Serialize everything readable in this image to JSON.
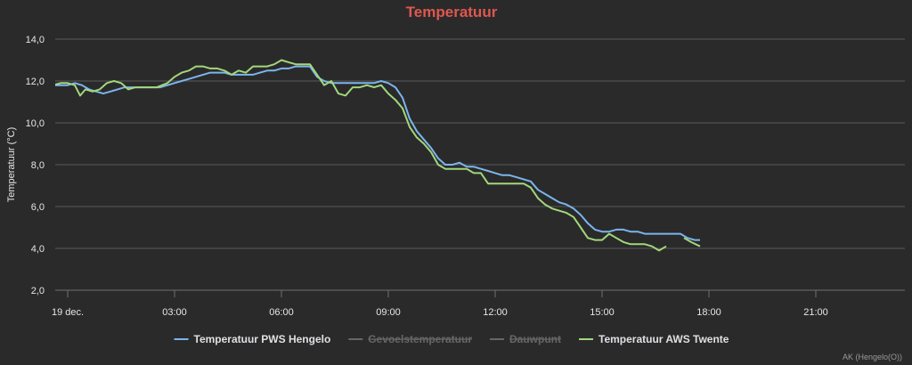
{
  "chart_data": {
    "type": "line",
    "title": "Temperatuur",
    "ylabel": "Temperatuur (°C)",
    "xlabel": "",
    "ylim": [
      2.0,
      14.0
    ],
    "yticks": [
      "2,0",
      "4,0",
      "6,0",
      "8,0",
      "10,0",
      "12,0",
      "14,0"
    ],
    "xlim": [
      -0.35,
      23.5
    ],
    "xticks": [
      {
        "h": 0,
        "label": "19 dec."
      },
      {
        "h": 3,
        "label": "03:00"
      },
      {
        "h": 6,
        "label": "06:00"
      },
      {
        "h": 9,
        "label": "09:00"
      },
      {
        "h": 12,
        "label": "12:00"
      },
      {
        "h": 15,
        "label": "15:00"
      },
      {
        "h": 18,
        "label": "18:00"
      },
      {
        "h": 21,
        "label": "21:00"
      }
    ],
    "grid": true,
    "legend_position": "bottom",
    "series": [
      {
        "name": "Temperatuur PWS Hengelo",
        "color": "#7cb5ec",
        "visible": true,
        "points": [
          [
            -0.95,
            11.8
          ],
          [
            -0.7,
            11.9
          ],
          [
            -0.5,
            11.8
          ],
          [
            -0.2,
            11.8
          ],
          [
            0.0,
            11.8
          ],
          [
            0.2,
            11.9
          ],
          [
            0.4,
            11.8
          ],
          [
            0.6,
            11.6
          ],
          [
            0.8,
            11.5
          ],
          [
            1.0,
            11.4
          ],
          [
            1.2,
            11.5
          ],
          [
            1.4,
            11.6
          ],
          [
            1.6,
            11.7
          ],
          [
            1.8,
            11.7
          ],
          [
            2.0,
            11.7
          ],
          [
            2.2,
            11.7
          ],
          [
            2.4,
            11.7
          ],
          [
            2.6,
            11.7
          ],
          [
            2.8,
            11.8
          ],
          [
            3.0,
            11.9
          ],
          [
            3.2,
            12.0
          ],
          [
            3.4,
            12.1
          ],
          [
            3.6,
            12.2
          ],
          [
            3.8,
            12.3
          ],
          [
            4.0,
            12.4
          ],
          [
            4.2,
            12.4
          ],
          [
            4.4,
            12.4
          ],
          [
            4.6,
            12.3
          ],
          [
            4.8,
            12.3
          ],
          [
            5.0,
            12.3
          ],
          [
            5.2,
            12.3
          ],
          [
            5.4,
            12.4
          ],
          [
            5.6,
            12.5
          ],
          [
            5.8,
            12.5
          ],
          [
            6.0,
            12.6
          ],
          [
            6.2,
            12.6
          ],
          [
            6.4,
            12.7
          ],
          [
            6.6,
            12.7
          ],
          [
            6.8,
            12.7
          ],
          [
            7.0,
            12.2
          ],
          [
            7.2,
            12.0
          ],
          [
            7.4,
            11.9
          ],
          [
            7.6,
            11.9
          ],
          [
            7.8,
            11.9
          ],
          [
            8.0,
            11.9
          ],
          [
            8.2,
            11.9
          ],
          [
            8.4,
            11.9
          ],
          [
            8.6,
            11.9
          ],
          [
            8.8,
            12.0
          ],
          [
            9.0,
            11.9
          ],
          [
            9.2,
            11.7
          ],
          [
            9.4,
            11.2
          ],
          [
            9.6,
            10.2
          ],
          [
            9.8,
            9.6
          ],
          [
            10.0,
            9.2
          ],
          [
            10.2,
            8.8
          ],
          [
            10.4,
            8.3
          ],
          [
            10.6,
            8.0
          ],
          [
            10.8,
            8.0
          ],
          [
            11.0,
            8.1
          ],
          [
            11.2,
            7.9
          ],
          [
            11.4,
            7.9
          ],
          [
            11.6,
            7.8
          ],
          [
            11.8,
            7.7
          ],
          [
            12.0,
            7.6
          ],
          [
            12.2,
            7.5
          ],
          [
            12.4,
            7.5
          ],
          [
            12.6,
            7.4
          ],
          [
            12.8,
            7.3
          ],
          [
            13.0,
            7.2
          ],
          [
            13.2,
            6.8
          ],
          [
            13.4,
            6.6
          ],
          [
            13.6,
            6.4
          ],
          [
            13.8,
            6.2
          ],
          [
            14.0,
            6.1
          ],
          [
            14.2,
            5.9
          ],
          [
            14.4,
            5.6
          ],
          [
            14.6,
            5.2
          ],
          [
            14.8,
            4.9
          ],
          [
            15.0,
            4.8
          ],
          [
            15.2,
            4.8
          ],
          [
            15.4,
            4.9
          ],
          [
            15.6,
            4.9
          ],
          [
            15.8,
            4.8
          ],
          [
            16.0,
            4.8
          ],
          [
            16.2,
            4.7
          ],
          [
            16.4,
            4.7
          ],
          [
            16.6,
            4.7
          ],
          [
            16.8,
            4.7
          ],
          [
            17.0,
            4.7
          ],
          [
            17.2,
            4.7
          ],
          [
            17.4,
            4.5
          ],
          [
            17.6,
            4.4
          ],
          [
            17.75,
            4.4
          ]
        ]
      },
      {
        "name": "Gevoelstemperatuur",
        "color": "#666666",
        "visible": false,
        "points": []
      },
      {
        "name": "Dauwpunt",
        "color": "#666666",
        "visible": false,
        "points": []
      },
      {
        "name": "Temperatuur AWS Twente",
        "color": "#a3d77a",
        "visible": true,
        "points": [
          [
            -0.95,
            11.9
          ],
          [
            -0.8,
            11.8
          ],
          [
            -0.6,
            11.9
          ],
          [
            -0.4,
            11.8
          ],
          [
            -0.2,
            11.9
          ],
          [
            0.0,
            11.9
          ],
          [
            0.2,
            11.8
          ],
          [
            0.35,
            11.3
          ],
          [
            0.5,
            11.6
          ],
          [
            0.7,
            11.5
          ],
          [
            0.9,
            11.6
          ],
          [
            1.1,
            11.9
          ],
          [
            1.3,
            12.0
          ],
          [
            1.5,
            11.9
          ],
          [
            1.7,
            11.6
          ],
          [
            1.9,
            11.7
          ],
          [
            2.2,
            11.7
          ],
          [
            2.5,
            11.7
          ],
          [
            2.8,
            11.9
          ],
          [
            3.0,
            12.2
          ],
          [
            3.2,
            12.4
          ],
          [
            3.4,
            12.5
          ],
          [
            3.6,
            12.7
          ],
          [
            3.8,
            12.7
          ],
          [
            4.0,
            12.6
          ],
          [
            4.2,
            12.6
          ],
          [
            4.4,
            12.5
          ],
          [
            4.6,
            12.3
          ],
          [
            4.8,
            12.5
          ],
          [
            5.0,
            12.4
          ],
          [
            5.2,
            12.7
          ],
          [
            5.4,
            12.7
          ],
          [
            5.6,
            12.7
          ],
          [
            5.8,
            12.8
          ],
          [
            6.0,
            13.0
          ],
          [
            6.2,
            12.9
          ],
          [
            6.4,
            12.8
          ],
          [
            6.6,
            12.8
          ],
          [
            6.8,
            12.8
          ],
          [
            7.0,
            12.3
          ],
          [
            7.2,
            11.8
          ],
          [
            7.4,
            12.0
          ],
          [
            7.6,
            11.4
          ],
          [
            7.8,
            11.3
          ],
          [
            8.0,
            11.7
          ],
          [
            8.2,
            11.7
          ],
          [
            8.4,
            11.8
          ],
          [
            8.6,
            11.7
          ],
          [
            8.8,
            11.8
          ],
          [
            9.0,
            11.4
          ],
          [
            9.2,
            11.1
          ],
          [
            9.4,
            10.7
          ],
          [
            9.6,
            9.8
          ],
          [
            9.8,
            9.3
          ],
          [
            10.0,
            9.0
          ],
          [
            10.2,
            8.6
          ],
          [
            10.4,
            8.0
          ],
          [
            10.6,
            7.8
          ],
          [
            10.8,
            7.8
          ],
          [
            11.0,
            7.8
          ],
          [
            11.2,
            7.8
          ],
          [
            11.4,
            7.6
          ],
          [
            11.6,
            7.6
          ],
          [
            11.8,
            7.1
          ],
          [
            12.0,
            7.1
          ],
          [
            12.2,
            7.1
          ],
          [
            12.4,
            7.1
          ],
          [
            12.6,
            7.1
          ],
          [
            12.8,
            7.1
          ],
          [
            13.0,
            6.9
          ],
          [
            13.2,
            6.4
          ],
          [
            13.4,
            6.1
          ],
          [
            13.6,
            5.9
          ],
          [
            13.8,
            5.8
          ],
          [
            14.0,
            5.7
          ],
          [
            14.2,
            5.5
          ],
          [
            14.4,
            5.0
          ],
          [
            14.6,
            4.5
          ],
          [
            14.8,
            4.4
          ],
          [
            15.0,
            4.4
          ],
          [
            15.2,
            4.7
          ],
          [
            15.4,
            4.5
          ],
          [
            15.6,
            4.3
          ],
          [
            15.8,
            4.2
          ],
          [
            16.0,
            4.2
          ],
          [
            16.2,
            4.2
          ],
          [
            16.4,
            4.1
          ],
          [
            16.6,
            3.9
          ],
          [
            16.8,
            4.1
          ],
          null,
          [
            17.3,
            4.5
          ],
          [
            17.5,
            4.3
          ],
          [
            17.75,
            4.1
          ]
        ]
      }
    ],
    "credit": "AK (Hengelo(O))"
  }
}
